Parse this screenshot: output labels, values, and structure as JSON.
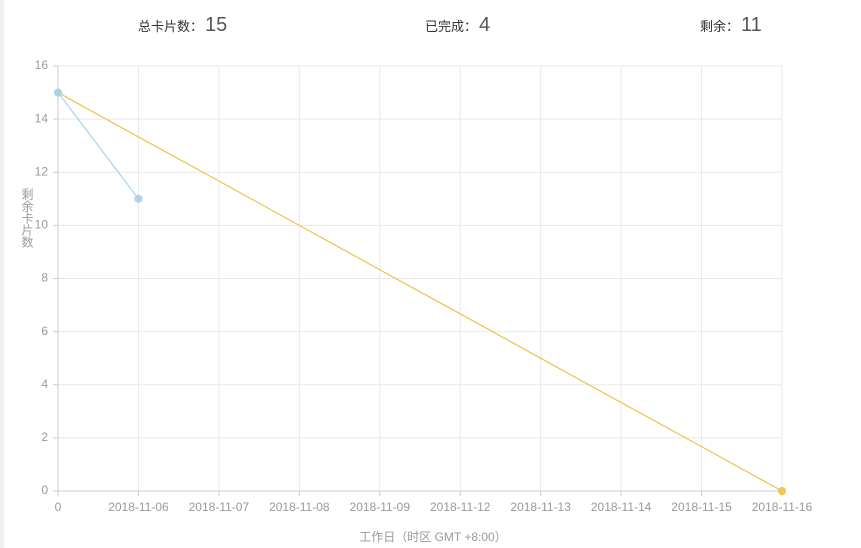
{
  "stats": [
    {
      "label": "总卡片数：",
      "value": 15
    },
    {
      "label": "已完成：",
      "value": 4
    },
    {
      "label": "剩余：",
      "value": 11
    }
  ],
  "chart_data": {
    "type": "line",
    "x_label": "工作日（时区 GMT +8:00）",
    "y_label": "剩余卡片数",
    "categories": [
      "0",
      "2018-11-06",
      "2018-11-07",
      "2018-11-08",
      "2018-11-09",
      "2018-11-12",
      "2018-11-13",
      "2018-11-14",
      "2018-11-15",
      "2018-11-16"
    ],
    "series": [
      {
        "color": "#f0c24c",
        "values": [
          15,
          13.33,
          11.67,
          10,
          8.33,
          6.67,
          5,
          3.33,
          1.67,
          0
        ]
      },
      {
        "color": "#a8d0ef",
        "values": [
          15,
          11,
          null,
          null,
          null,
          null,
          null,
          null,
          null,
          null
        ]
      }
    ],
    "ylim": [
      0,
      16
    ],
    "yticks": [
      0,
      2,
      4,
      6,
      8,
      10,
      12,
      14,
      16
    ],
    "grid": true
  }
}
